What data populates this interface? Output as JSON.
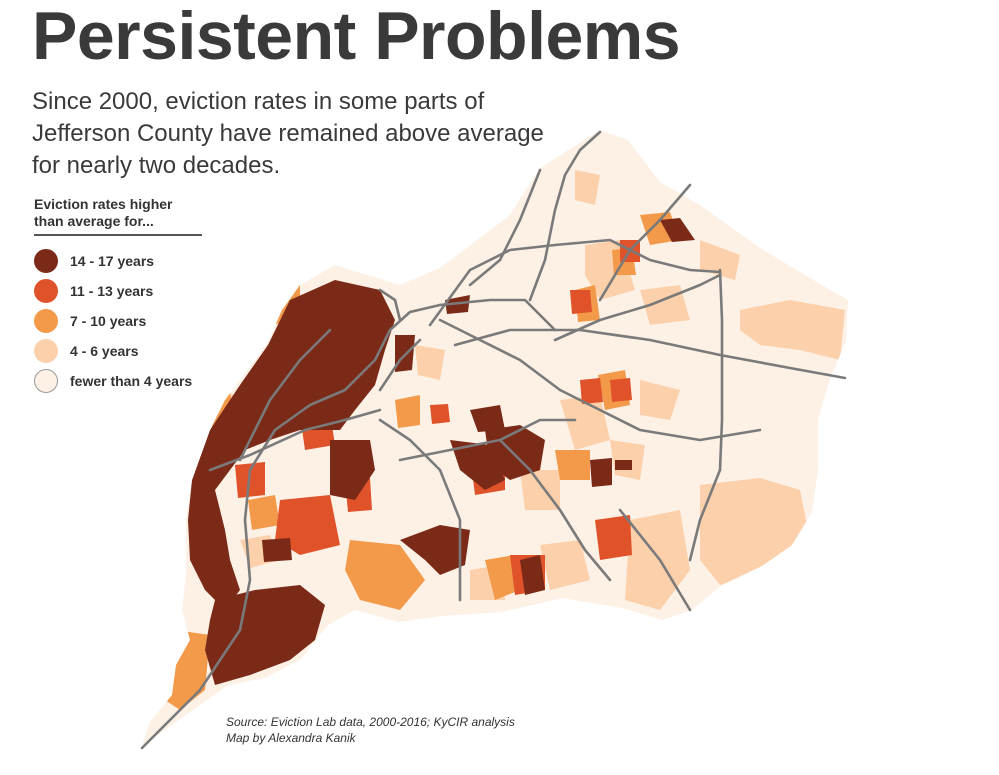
{
  "title": "Persistent Problems",
  "subtitle": "Since 2000, eviction rates in some parts of Jefferson County have remained above average for nearly two decades.",
  "legend": {
    "title": "Eviction rates higher than average for...",
    "items": [
      {
        "label": "14 - 17 years",
        "color": "#7a2a17"
      },
      {
        "label": "11 - 13 years",
        "color": "#e0522a"
      },
      {
        "label": "7 - 10 years",
        "color": "#f39a4a"
      },
      {
        "label": "4 - 6 years",
        "color": "#fbd0aa"
      },
      {
        "label": "fewer than 4 years",
        "color": "#fdf1e6"
      }
    ]
  },
  "credits": {
    "source": "Source: Eviction Lab data, 2000-2016; KyCIR analysis",
    "author": "Map by Alexandra Kanik"
  },
  "colors": {
    "highway": "#7a7a7a"
  }
}
